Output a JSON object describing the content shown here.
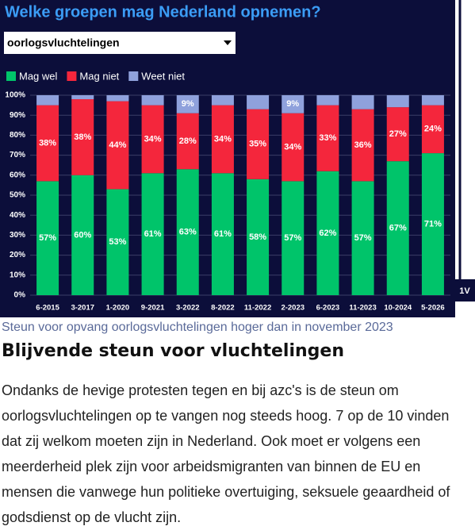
{
  "chart_data": {
    "type": "stacked-bar",
    "title": "Welke groepen mag Nederland opnemen?",
    "categories": [
      "6-2015",
      "3-2017",
      "1-2020",
      "9-2021",
      "3-2022",
      "8-2022",
      "11-2022",
      "2-2023",
      "6-2023",
      "11-2023",
      "10-2024",
      "5-2026"
    ],
    "series": [
      {
        "name": "Mag wel",
        "color": "#00c46a",
        "values": [
          57,
          60,
          53,
          61,
          63,
          61,
          58,
          57,
          62,
          57,
          67,
          71
        ],
        "value_labels": [
          "57%",
          "60%",
          "53%",
          "61%",
          "63%",
          "61%",
          "58%",
          "57%",
          "62%",
          "57%",
          "67%",
          "71%"
        ]
      },
      {
        "name": "Mag niet",
        "color": "#f4263c",
        "values": [
          38,
          38,
          44,
          34,
          28,
          34,
          35,
          34,
          33,
          36,
          27,
          24
        ],
        "value_labels": [
          "38%",
          "38%",
          "44%",
          "34%",
          "28%",
          "34%",
          "35%",
          "34%",
          "33%",
          "36%",
          "27%",
          "24%"
        ]
      },
      {
        "name": "Weet niet",
        "color": "#8fa1dc",
        "values": [
          5,
          2,
          3,
          5,
          9,
          5,
          7,
          9,
          5,
          7,
          6,
          5
        ],
        "value_labels": [
          null,
          null,
          null,
          null,
          "9%",
          null,
          null,
          "9%",
          null,
          null,
          null,
          null
        ]
      }
    ],
    "ylim": [
      0,
      100
    ],
    "yticks": [
      {
        "value": 0,
        "label": "0%"
      },
      {
        "value": 10,
        "label": "10%"
      },
      {
        "value": 20,
        "label": "20%"
      },
      {
        "value": 30,
        "label": "30%"
      },
      {
        "value": 40,
        "label": "40%"
      },
      {
        "value": 50,
        "label": "50%"
      },
      {
        "value": 60,
        "label": "60%"
      },
      {
        "value": 70,
        "label": "70%"
      },
      {
        "value": 80,
        "label": "80%"
      },
      {
        "value": 90,
        "label": "90%"
      },
      {
        "value": 100,
        "label": "100%"
      }
    ],
    "grid": true,
    "legend": "top-left"
  },
  "dropdown": "oorlogsvluchtelingen",
  "logo": "1V",
  "caption": "Steun voor opvang oorlogsvluchtelingen hoger dan in november 2023",
  "heading": "Blijvende steun voor vluchtelingen",
  "body": "Ondanks de hevige protesten tegen en bij azc's is de steun om oorlogsvluchtelingen op te vangen nog steeds hoog. 7 op de 10 vinden dat zij welkom moeten zijn in Nederland. Ook moet er volgens een meerderheid plek zijn voor arbeidsmigranten van binnen de EU en mensen die vanwege hun politieke overtuiging, seksuele geaardheid of godsdienst op de vlucht zijn."
}
